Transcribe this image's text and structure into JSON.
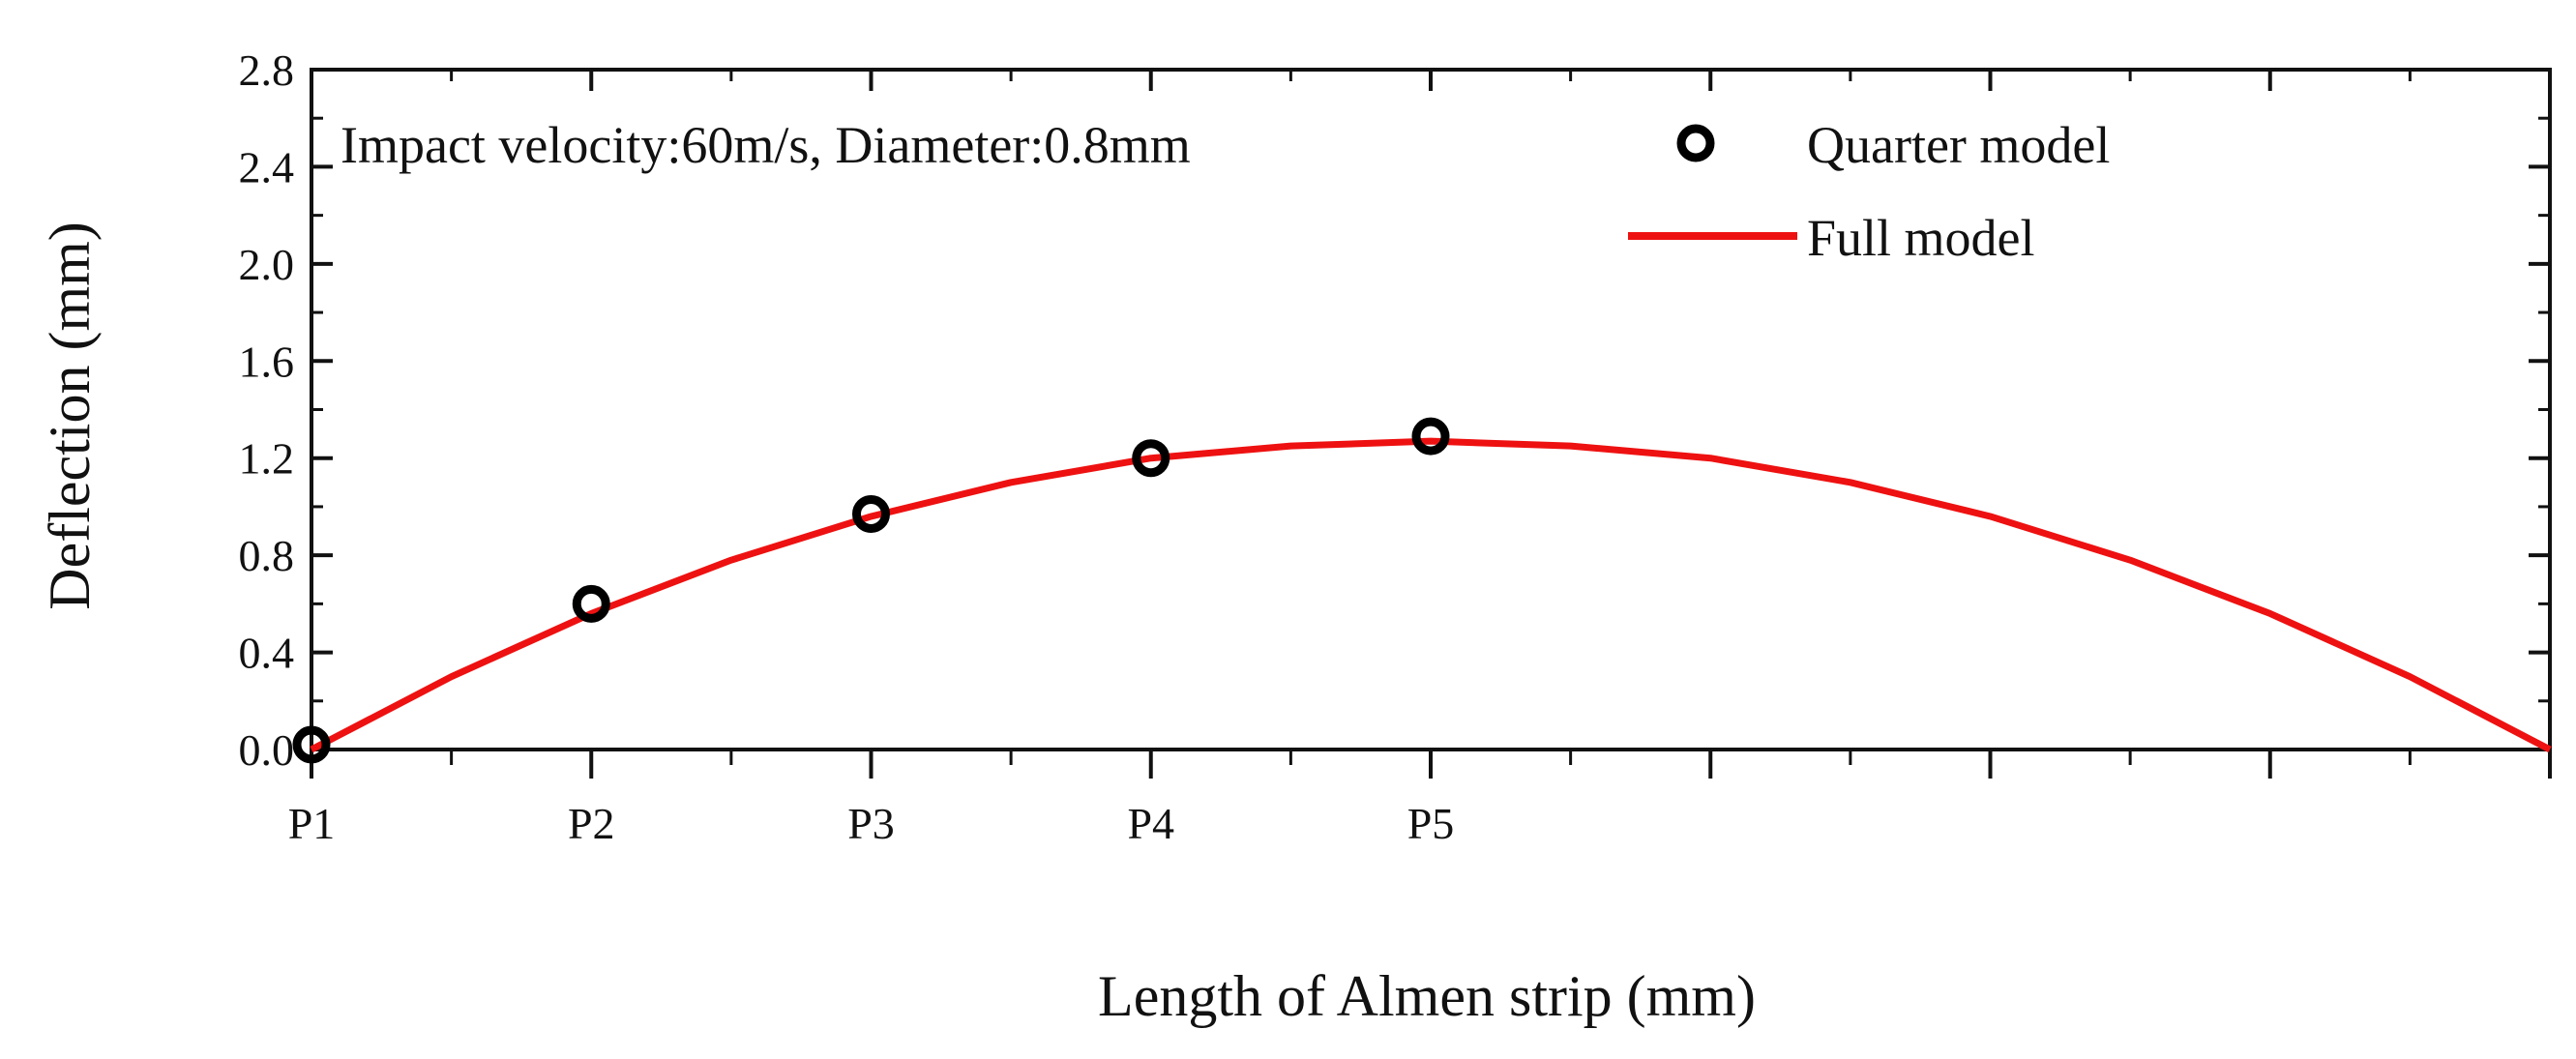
{
  "chart_data": {
    "type": "scatter+line",
    "title": "",
    "xlabel": "Length of Almen strip (mm)",
    "ylabel": "Deflection (mm)",
    "annotation": "Impact velocity:60m/s, Diameter:0.8mm",
    "xlim": [
      0,
      8
    ],
    "ylim": [
      0,
      2.8
    ],
    "x_major_ticks": [
      0,
      1,
      2,
      3,
      4,
      5,
      6,
      7,
      8
    ],
    "x_tick_labels": [
      "P1",
      "P2",
      "P3",
      "P4",
      "P5"
    ],
    "y_ticks": [
      0.0,
      0.4,
      0.8,
      1.2,
      1.6,
      2.0,
      2.4,
      2.8
    ],
    "y_tick_labels": [
      "0.0",
      "0.4",
      "0.8",
      "1.2",
      "1.6",
      "2.0",
      "2.4",
      "2.8"
    ],
    "legend_position": "top-right",
    "series": [
      {
        "name": "Quarter model",
        "kind": "scatter",
        "marker": "open-circle",
        "color": "#000000",
        "x": [
          0,
          1,
          2,
          3,
          4
        ],
        "y": [
          0.02,
          0.6,
          0.97,
          1.2,
          1.29
        ]
      },
      {
        "name": "Full model",
        "kind": "line",
        "color": "#ee1111",
        "x": [
          0,
          0.5,
          1,
          1.5,
          2,
          2.5,
          3,
          3.5,
          4,
          4.5,
          5,
          5.5,
          6,
          6.5,
          7,
          7.5,
          8
        ],
        "y": [
          0,
          0.3,
          0.56,
          0.78,
          0.96,
          1.1,
          1.2,
          1.25,
          1.27,
          1.25,
          1.2,
          1.1,
          0.96,
          0.78,
          0.56,
          0.3,
          0
        ]
      }
    ]
  }
}
